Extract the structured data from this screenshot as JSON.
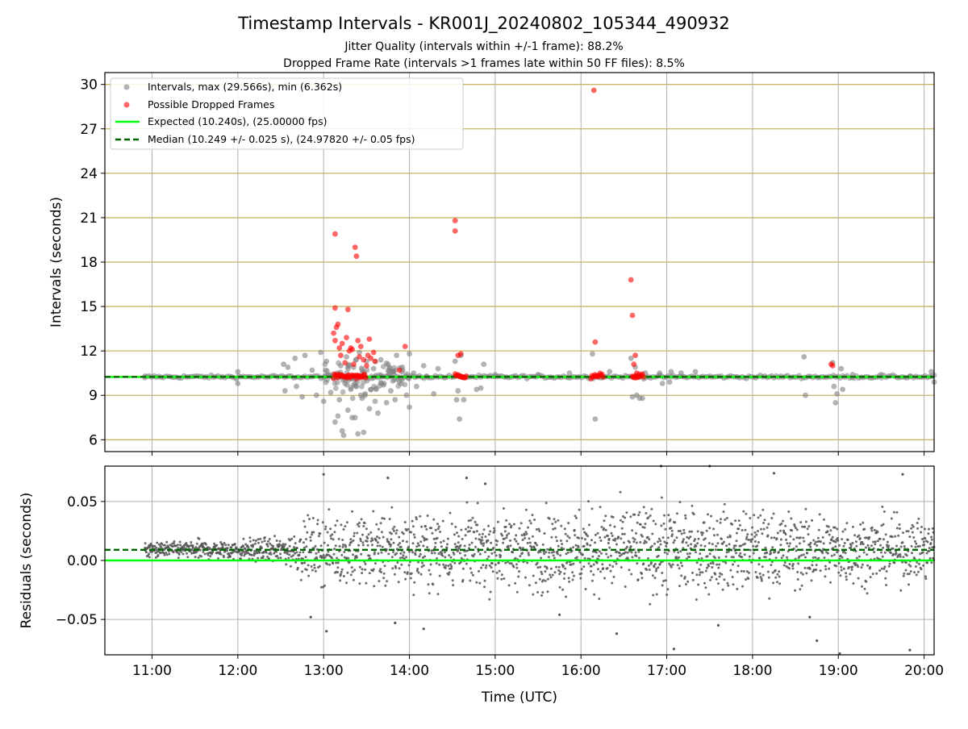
{
  "title": "Timestamp Intervals - KR001J_20240802_105344_490932",
  "subtitle_lines": [
    "Jitter Quality (intervals within +/-1 frame): 88.2%",
    "Dropped Frame Rate (intervals >1 frames late within 50 FF files): 8.5%"
  ],
  "colors": {
    "intervals": "#808080",
    "dropped": "#ff0000",
    "expected": "#00ff00",
    "median": "#006400",
    "grid_top": "#c8b464",
    "grid_bottom": "#b0b0b0",
    "residual_points": "#555555"
  },
  "chart_data": [
    {
      "type": "scatter",
      "ylabel": "Intervals (seconds)",
      "xlim": [
        "10:27",
        "20:07"
      ],
      "ylim": [
        5.2,
        30.8
      ],
      "yticks": [
        6,
        9,
        12,
        15,
        18,
        21,
        24,
        27,
        30
      ],
      "grid": true,
      "legend": {
        "placement": "top-left",
        "entries": [
          {
            "label": "Intervals, max (29.566s), min (6.362s)",
            "kind": "point",
            "series": "intervals"
          },
          {
            "label": "Possible Dropped Frames",
            "kind": "point",
            "series": "dropped"
          },
          {
            "label": "Expected (10.240s), (25.00000 fps)",
            "kind": "line",
            "series": "expected"
          },
          {
            "label": "Median (10.249 +/- 0.025 s), (24.97820 +/- 0.05 fps)",
            "kind": "dashed",
            "series": "median"
          }
        ]
      },
      "expected_value": 10.24,
      "median_value": 10.249,
      "series": [
        {
          "name": "Intervals, max (29.566s), min (6.362s)",
          "points": [
            [
              "10:55",
              10.2
            ],
            [
              "12:00",
              10.6
            ],
            [
              "12:00",
              9.8
            ],
            [
              "12:32",
              11.1
            ],
            [
              "12:33",
              9.3
            ],
            [
              "12:35",
              10.9
            ],
            [
              "12:40",
              11.5
            ],
            [
              "12:41",
              9.6
            ],
            [
              "12:45",
              8.9
            ],
            [
              "12:47",
              11.7
            ],
            [
              "12:52",
              10.7
            ],
            [
              "12:55",
              9.0
            ],
            [
              "12:58",
              11.9
            ],
            [
              "13:00",
              8.6
            ],
            [
              "13:02",
              11.3
            ],
            [
              "13:05",
              9.2
            ],
            [
              "13:08",
              7.2
            ],
            [
              "13:10",
              7.6
            ],
            [
              "13:11",
              8.7
            ],
            [
              "13:12",
              11.0
            ],
            [
              "13:13",
              6.6
            ],
            [
              "13:14",
              6.3
            ],
            [
              "13:15",
              9.8
            ],
            [
              "13:16",
              11.6
            ],
            [
              "13:17",
              8.0
            ],
            [
              "13:19",
              9.4
            ],
            [
              "13:20",
              7.5
            ],
            [
              "13:21",
              10.9
            ],
            [
              "13:22",
              7.5
            ],
            [
              "13:23",
              9.6
            ],
            [
              "13:24",
              6.4
            ],
            [
              "13:25",
              11.9
            ],
            [
              "13:26",
              9.0
            ],
            [
              "13:27",
              8.8
            ],
            [
              "13:28",
              6.5
            ],
            [
              "13:29",
              9.1
            ],
            [
              "13:30",
              11.3
            ],
            [
              "13:32",
              8.1
            ],
            [
              "13:33",
              9.4
            ],
            [
              "13:35",
              10.8
            ],
            [
              "13:36",
              8.6
            ],
            [
              "13:38",
              7.8
            ],
            [
              "13:40",
              11.4
            ],
            [
              "13:42",
              9.7
            ],
            [
              "13:44",
              8.5
            ],
            [
              "13:45",
              11.1
            ],
            [
              "13:47",
              9.3
            ],
            [
              "13:48",
              10.6
            ],
            [
              "13:50",
              8.7
            ],
            [
              "13:51",
              11.7
            ],
            [
              "13:53",
              9.9
            ],
            [
              "13:55",
              10.9
            ],
            [
              "13:58",
              9.0
            ],
            [
              "14:00",
              11.8
            ],
            [
              "14:00",
              8.2
            ],
            [
              "14:03",
              10.5
            ],
            [
              "14:05",
              9.6
            ],
            [
              "14:10",
              11.0
            ],
            [
              "14:12",
              10.3
            ],
            [
              "14:17",
              9.1
            ],
            [
              "14:20",
              10.8
            ],
            [
              "14:32",
              11.3
            ],
            [
              "14:33",
              8.7
            ],
            [
              "14:34",
              9.3
            ],
            [
              "14:35",
              7.4
            ],
            [
              "14:36",
              11.7
            ],
            [
              "14:38",
              8.7
            ],
            [
              "14:47",
              9.4
            ],
            [
              "14:50",
              9.5
            ],
            [
              "14:52",
              11.1
            ],
            [
              "15:00",
              10.4
            ],
            [
              "15:30",
              10.4
            ],
            [
              "15:52",
              10.5
            ],
            [
              "16:08",
              11.8
            ],
            [
              "16:10",
              7.4
            ],
            [
              "16:20",
              10.6
            ],
            [
              "16:35",
              11.5
            ],
            [
              "16:36",
              8.9
            ],
            [
              "16:38",
              10.9
            ],
            [
              "16:39",
              9.0
            ],
            [
              "16:41",
              8.8
            ],
            [
              "16:43",
              8.8
            ],
            [
              "16:45",
              10.5
            ],
            [
              "16:55",
              10.5
            ],
            [
              "16:57",
              9.8
            ],
            [
              "17:02",
              9.9
            ],
            [
              "17:03",
              10.6
            ],
            [
              "17:10",
              10.5
            ],
            [
              "17:20",
              10.6
            ],
            [
              "18:36",
              11.6
            ],
            [
              "18:37",
              9.0
            ],
            [
              "18:56",
              11.2
            ],
            [
              "18:57",
              9.6
            ],
            [
              "18:58",
              8.5
            ],
            [
              "18:59",
              9.1
            ],
            [
              "19:02",
              10.8
            ],
            [
              "19:03",
              9.4
            ],
            [
              "19:10",
              10.4
            ],
            [
              "19:30",
              10.4
            ],
            [
              "19:50",
              10.3
            ],
            [
              "20:05",
              10.6
            ],
            [
              "20:07",
              9.9
            ]
          ]
        },
        {
          "name": "Possible Dropped Frames",
          "points": [
            [
              "13:08",
              19.9
            ],
            [
              "13:08",
              14.9
            ],
            [
              "13:07",
              13.2
            ],
            [
              "13:08",
              12.7
            ],
            [
              "13:09",
              13.6
            ],
            [
              "13:10",
              13.8
            ],
            [
              "13:11",
              12.2
            ],
            [
              "13:12",
              11.7
            ],
            [
              "13:13",
              12.5
            ],
            [
              "13:15",
              11.2
            ],
            [
              "13:16",
              12.9
            ],
            [
              "13:17",
              14.8
            ],
            [
              "13:18",
              12.0
            ],
            [
              "13:19",
              12.2
            ],
            [
              "13:20",
              12.1
            ],
            [
              "13:21",
              11.1
            ],
            [
              "13:22",
              19.0
            ],
            [
              "13:23",
              18.4
            ],
            [
              "13:24",
              12.7
            ],
            [
              "13:25",
              11.6
            ],
            [
              "13:26",
              12.3
            ],
            [
              "13:28",
              11.4
            ],
            [
              "13:30",
              11.0
            ],
            [
              "13:31",
              11.7
            ],
            [
              "13:32",
              12.8
            ],
            [
              "13:33",
              11.5
            ],
            [
              "13:35",
              11.9
            ],
            [
              "13:36",
              11.3
            ],
            [
              "13:53",
              10.7
            ],
            [
              "13:57",
              12.3
            ],
            [
              "14:32",
              20.8
            ],
            [
              "14:32",
              20.1
            ],
            [
              "14:34",
              11.7
            ],
            [
              "14:36",
              11.8
            ],
            [
              "16:09",
              29.6
            ],
            [
              "16:10",
              12.6
            ],
            [
              "16:35",
              16.8
            ],
            [
              "16:36",
              14.4
            ],
            [
              "16:37",
              11.1
            ],
            [
              "16:38",
              11.7
            ],
            [
              "16:39",
              10.5
            ],
            [
              "18:55",
              11.1
            ],
            [
              "18:56",
              11.0
            ]
          ],
          "clusters": [
            {
              "start": "13:07",
              "end": "13:30",
              "value": 10.3
            },
            {
              "start": "14:32",
              "end": "14:40",
              "value": 10.3
            },
            {
              "start": "16:07",
              "end": "16:16",
              "value": 10.3
            },
            {
              "start": "16:36",
              "end": "16:44",
              "value": 10.3
            }
          ]
        }
      ]
    },
    {
      "type": "scatter",
      "xlabel": "Time (UTC)",
      "ylabel": "Residuals (seconds)",
      "xlim": [
        "10:27",
        "20:07"
      ],
      "ylim": [
        -0.08,
        0.08
      ],
      "yticks": [
        0.05,
        0.0,
        -0.05
      ],
      "ytick_labels": [
        "0.05",
        "0.00",
        "−0.05"
      ],
      "xticks": [
        "11:00",
        "12:00",
        "13:00",
        "14:00",
        "15:00",
        "16:00",
        "17:00",
        "18:00",
        "19:00",
        "20:00"
      ],
      "grid": true,
      "expected_value": 0.0,
      "median_value": 0.009,
      "series": [
        {
          "name": "Residuals",
          "time_range": [
            "10:55",
            "20:07"
          ],
          "center": 0.009,
          "spread_profile": [
            [
              "10:55",
              0.005
            ],
            [
              "12:30",
              0.008
            ],
            [
              "12:50",
              0.02
            ],
            [
              "13:30",
              0.025
            ],
            [
              "14:30",
              0.024
            ],
            [
              "16:30",
              0.03
            ],
            [
              "17:30",
              0.028
            ],
            [
              "19:00",
              0.024
            ],
            [
              "20:07",
              0.02
            ]
          ],
          "notable_points": [
            [
              "12:51",
              -0.048
            ],
            [
              "13:00",
              0.073
            ],
            [
              "13:02",
              -0.06
            ],
            [
              "13:45",
              0.07
            ],
            [
              "13:50",
              -0.053
            ],
            [
              "14:10",
              -0.058
            ],
            [
              "14:40",
              0.07
            ],
            [
              "14:53",
              0.065
            ],
            [
              "15:45",
              -0.046
            ],
            [
              "16:25",
              -0.062
            ],
            [
              "16:56",
              0.08
            ],
            [
              "17:05",
              -0.075
            ],
            [
              "17:30",
              0.08
            ],
            [
              "17:36",
              -0.055
            ],
            [
              "18:15",
              0.074
            ],
            [
              "18:40",
              -0.048
            ],
            [
              "18:45",
              -0.068
            ],
            [
              "19:01",
              -0.079
            ],
            [
              "19:45",
              0.073
            ],
            [
              "19:50",
              -0.076
            ]
          ]
        }
      ]
    }
  ]
}
